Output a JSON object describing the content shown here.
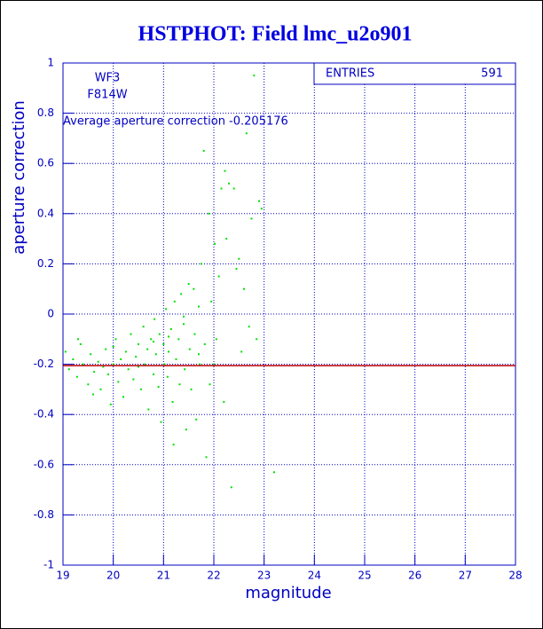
{
  "chart_data": {
    "type": "scatter",
    "title": "HSTPHOT: Field lmc_u2o901",
    "x_label": "magnitude",
    "y_label": "aperture correction",
    "xlim": [
      19,
      28
    ],
    "ylim": [
      -1,
      1
    ],
    "xticks": [
      19,
      20,
      21,
      22,
      23,
      24,
      25,
      26,
      27,
      28
    ],
    "yticks": [
      -1,
      -0.8,
      -0.6,
      -0.4,
      -0.2,
      0,
      0.2,
      0.4,
      0.6,
      0.8,
      1
    ],
    "grid": true,
    "color": "#00e000",
    "annotations": [
      "WF3",
      "F814W",
      "Average aperture correction -0.205176"
    ],
    "hline": {
      "value": -0.205176,
      "color": "#c00000"
    },
    "stats": {
      "label": "ENTRIES",
      "value": 591
    },
    "x": [
      19.05,
      19.12,
      19.2,
      19.28,
      19.35,
      19.4,
      19.5,
      19.55,
      19.62,
      19.7,
      19.75,
      19.8,
      19.85,
      19.9,
      19.95,
      20.0,
      20.05,
      20.1,
      20.15,
      20.2,
      20.25,
      20.3,
      20.35,
      20.4,
      20.45,
      20.5,
      20.55,
      20.6,
      20.62,
      20.68,
      20.7,
      20.75,
      20.8,
      20.82,
      20.85,
      20.9,
      20.92,
      20.95,
      21.0,
      21.02,
      21.05,
      21.08,
      21.1,
      21.15,
      21.18,
      21.2,
      21.22,
      21.25,
      21.3,
      21.32,
      21.35,
      21.4,
      21.42,
      21.45,
      21.5,
      21.52,
      21.55,
      21.6,
      21.62,
      21.65,
      21.7,
      21.72,
      21.75,
      21.8,
      21.82,
      21.85,
      21.9,
      21.92,
      21.95,
      22.0,
      22.02,
      22.05,
      22.1,
      22.15,
      22.2,
      22.22,
      22.25,
      22.3,
      22.35,
      22.4,
      22.45,
      22.5,
      22.55,
      22.6,
      22.65,
      22.7,
      22.75,
      22.8,
      22.85,
      22.9,
      22.95,
      23.2,
      19.3,
      19.6,
      20.0,
      20.5,
      20.8,
      21.1,
      21.4,
      21.7
    ],
    "y": [
      -0.15,
      -0.22,
      -0.18,
      -0.25,
      -0.12,
      -0.2,
      -0.28,
      -0.16,
      -0.23,
      -0.19,
      -0.3,
      -0.21,
      -0.14,
      -0.24,
      -0.36,
      -0.2,
      -0.1,
      -0.27,
      -0.18,
      -0.33,
      -0.15,
      -0.22,
      -0.08,
      -0.26,
      -0.17,
      -0.12,
      -0.3,
      -0.05,
      -0.2,
      -0.14,
      -0.38,
      -0.1,
      -0.24,
      -0.02,
      -0.16,
      -0.29,
      -0.08,
      -0.43,
      -0.12,
      -0.2,
      0.02,
      -0.25,
      -0.15,
      -0.06,
      -0.35,
      -0.52,
      0.05,
      -0.18,
      -0.1,
      -0.28,
      0.08,
      -0.04,
      -0.22,
      -0.46,
      0.12,
      -0.14,
      -0.3,
      0.1,
      -0.08,
      -0.42,
      0.03,
      -0.2,
      0.2,
      0.65,
      -0.12,
      -0.57,
      0.4,
      -0.28,
      0.05,
      -0.2,
      0.28,
      -0.1,
      0.15,
      0.5,
      -0.35,
      0.57,
      0.3,
      0.52,
      -0.69,
      0.5,
      0.18,
      0.22,
      -0.15,
      0.1,
      0.72,
      -0.05,
      0.38,
      0.95,
      -0.1,
      0.45,
      0.42,
      -0.63,
      -0.1,
      -0.32,
      -0.13,
      -0.21,
      -0.11,
      -0.09,
      -0.01,
      -0.16
    ]
  }
}
